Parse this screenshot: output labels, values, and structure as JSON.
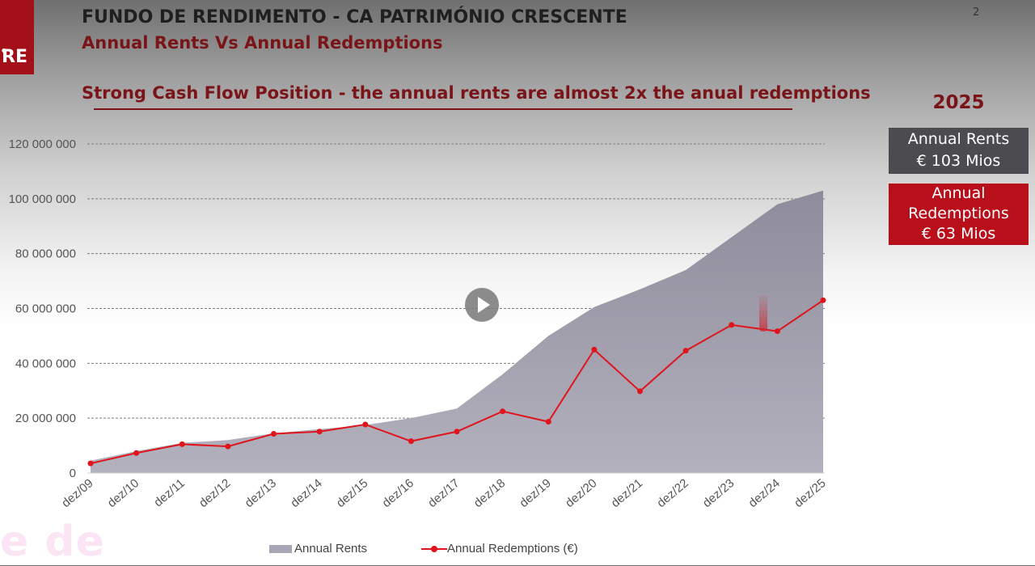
{
  "logo": {
    "text": "RE",
    "dot": "o"
  },
  "watermark": "e de",
  "header": {
    "title": "FUNDO DE RENDIMENTO - CA PATRIMÓNIO CRESCENTE",
    "subtitle": "Annual Rents Vs Annual Redemptions",
    "page_number": "2"
  },
  "headline": "Strong Cash Flow Position - the annual rents are almost 2x the anual redemptions",
  "summary": {
    "year": "2025",
    "rents_label": "Annual Rents",
    "rents_value": "€ 103 Mios",
    "redemptions_label_1": "Annual",
    "redemptions_label_2": "Redemptions",
    "redemptions_value": "€ 63 Mios"
  },
  "colors": {
    "rents_area": "#a8a6b4",
    "redemptions_line": "#e0141c",
    "accent": "#7a1418"
  },
  "chart_data": {
    "type": "area",
    "categories": [
      "dez/09",
      "dez/10",
      "dez/11",
      "dez/12",
      "dez/13",
      "dez/14",
      "dez/15",
      "dez/16",
      "dez/17",
      "dez/18",
      "dez/19",
      "dez/20",
      "dez/21",
      "dez/22",
      "dez/23",
      "dez/24",
      "dez/25"
    ],
    "series": [
      {
        "name": "Annual Rents",
        "type": "area",
        "values": [
          4500000,
          8000000,
          11000000,
          12000000,
          14500000,
          16000000,
          17500000,
          20000000,
          23500000,
          36000000,
          50000000,
          60500000,
          67000000,
          74000000,
          86000000,
          98000000,
          103000000
        ]
      },
      {
        "name": "Annual Redemptions (€)",
        "type": "line",
        "values": [
          3500000,
          7300000,
          10500000,
          9700000,
          14300000,
          15100000,
          17700000,
          11600000,
          15100000,
          22500000,
          18700000,
          45000000,
          29800000,
          44600000,
          54000000,
          51700000,
          63000000
        ]
      }
    ],
    "yticks": [
      "0",
      "20 000 000",
      "40 000 000",
      "60 000 000",
      "80 000 000",
      "100 000 000",
      "120 000 000"
    ],
    "ylim": [
      0,
      120000000
    ],
    "grid": true,
    "legend": "bottom"
  }
}
